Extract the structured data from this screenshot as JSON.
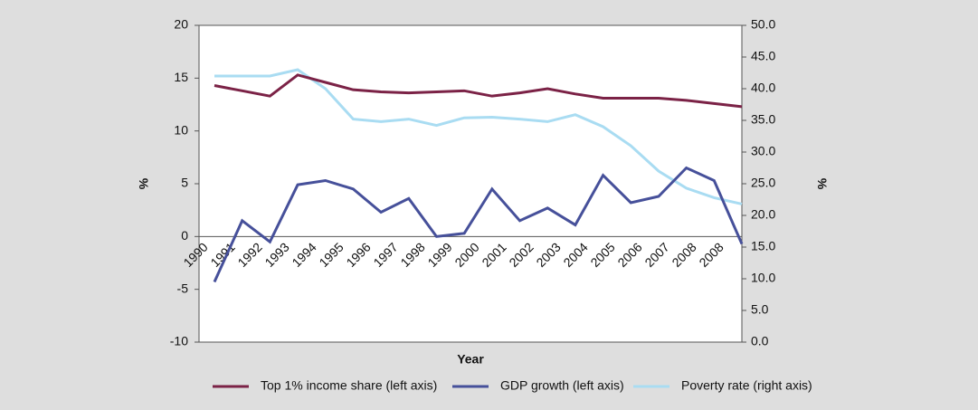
{
  "chart_data": {
    "type": "line",
    "xlabel": "Year",
    "ylabel": "%",
    "y2label": "%",
    "categories": [
      "1990",
      "1991",
      "1992",
      "1993",
      "1994",
      "1995",
      "1996",
      "1997",
      "1998",
      "1999",
      "2000",
      "2001",
      "2002",
      "2003",
      "2004",
      "2005",
      "2006",
      "2007",
      "2008",
      "2008"
    ],
    "series": [
      {
        "name": "Top 1% income share (left axis)",
        "color": "#7b2246",
        "values": [
          14.3,
          13.8,
          13.3,
          15.3,
          14.6,
          13.9,
          13.7,
          13.6,
          13.7,
          13.8,
          13.3,
          13.6,
          14.0,
          13.5,
          13.1,
          13.1,
          13.1,
          12.9,
          12.6,
          12.3
        ]
      },
      {
        "name": "GDP growth (left axis)",
        "color": "#46509a",
        "values": [
          -4.3,
          1.5,
          -0.5,
          4.9,
          5.3,
          4.5,
          2.3,
          3.6,
          0.0,
          0.3,
          4.5,
          1.5,
          2.7,
          1.1,
          5.8,
          3.2,
          3.8,
          6.5,
          5.3,
          -0.7
        ]
      },
      {
        "name": "Poverty rate (right axis)",
        "color": "#a9dcf2",
        "axis": "y2",
        "values": [
          42.0,
          42.0,
          42.0,
          43.0,
          40.0,
          35.2,
          34.8,
          35.2,
          34.2,
          35.4,
          35.5,
          35.2,
          34.8,
          35.9,
          34.0,
          31.0,
          27.0,
          24.3,
          22.8,
          21.8
        ]
      }
    ],
    "ylim": [
      -10,
      20
    ],
    "yticks": [
      -10,
      -5,
      0,
      5,
      10,
      15,
      20
    ],
    "y2lim": [
      0,
      50
    ],
    "y2ticks": [
      {
        "value": 0,
        "label": "0.0"
      },
      {
        "value": 5,
        "label": "5.0"
      },
      {
        "value": 10,
        "label": "10.0"
      },
      {
        "value": 15,
        "label": "15.0"
      },
      {
        "value": 20,
        "label": "20.0"
      },
      {
        "value": 25,
        "label": "25.0"
      },
      {
        "value": 30,
        "label": "30.0"
      },
      {
        "value": 35,
        "label": "35.0"
      },
      {
        "value": 40,
        "label": "40.0"
      },
      {
        "value": 45,
        "label": "45.0"
      },
      {
        "value": 50,
        "label": "50.0"
      }
    ],
    "grid": false
  }
}
